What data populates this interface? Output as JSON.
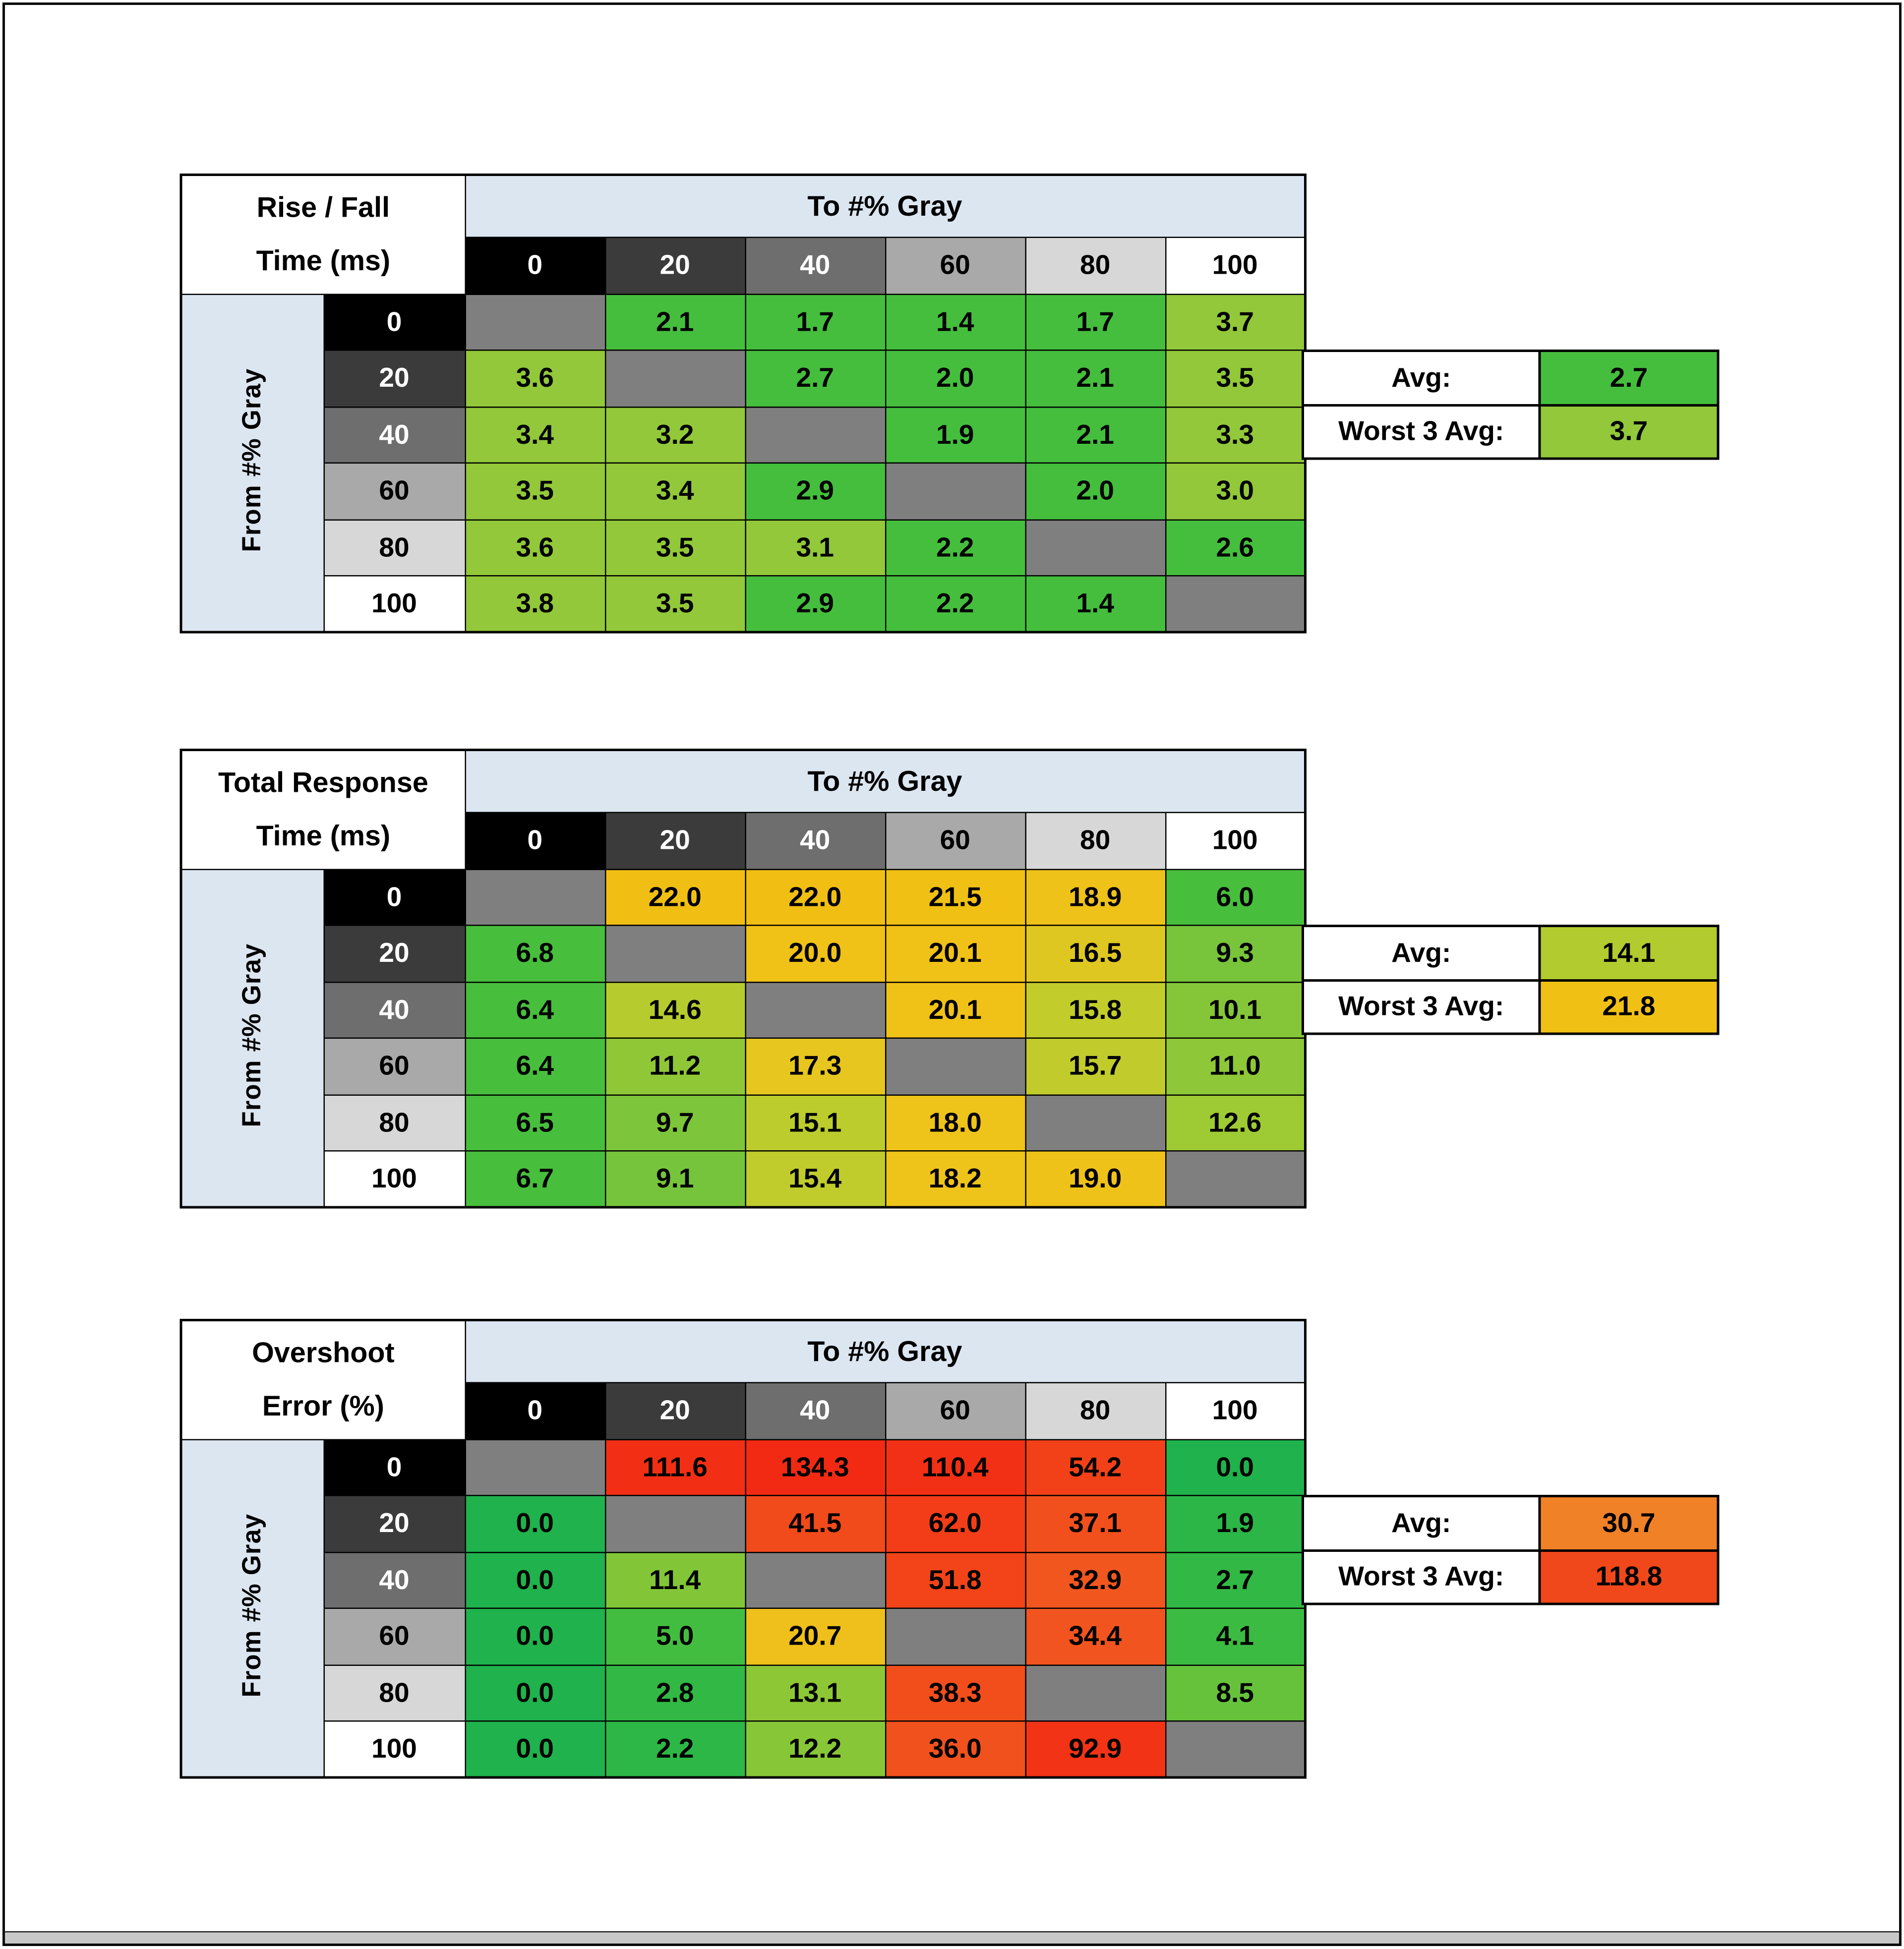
{
  "page": {
    "background": "#FFFFFF",
    "frame_color": "#0A0A0A",
    "scrollbar_color": "#C8C8C8"
  },
  "shared": {
    "to_label": "To #% Gray",
    "from_label": "From #% Gray",
    "avg_label": "Avg:",
    "worst_label": "Worst 3 Avg:",
    "levels": [
      "0",
      "20",
      "40",
      "60",
      "80",
      "100"
    ],
    "level_styles": [
      {
        "bg": "#000000",
        "fg": "#FFFFFF"
      },
      {
        "bg": "#3B3B3B",
        "fg": "#FFFFFF"
      },
      {
        "bg": "#6E6E6E",
        "fg": "#FFFFFF"
      },
      {
        "bg": "#A9A9A9",
        "fg": "#000000"
      },
      {
        "bg": "#D7D7D7",
        "fg": "#000000"
      },
      {
        "bg": "#FFFFFF",
        "fg": "#000000"
      }
    ],
    "header_band_color": "#DCE6F1",
    "diagonal_color": "#7F7F7F"
  },
  "tables": [
    {
      "title_line1": "Rise / Fall",
      "title_line2": "Time (ms)",
      "avg_color": "#45BE3E",
      "worst_color": "#92C839",
      "colors": [
        [
          null,
          "#45BE3E",
          "#45BE3E",
          "#45BE3E",
          "#45BE3E",
          "#92C839"
        ],
        [
          "#92C839",
          null,
          "#45BE3E",
          "#45BE3E",
          "#45BE3E",
          "#92C839"
        ],
        [
          "#92C839",
          "#92C839",
          null,
          "#45BE3E",
          "#45BE3E",
          "#92C839"
        ],
        [
          "#92C839",
          "#92C839",
          "#45BE3E",
          null,
          "#45BE3E",
          "#92C839"
        ],
        [
          "#92C839",
          "#92C839",
          "#92C839",
          "#45BE3E",
          null,
          "#45BE3E"
        ],
        [
          "#92C839",
          "#92C839",
          "#45BE3E",
          "#45BE3E",
          "#45BE3E",
          null
        ]
      ]
    },
    {
      "title_line1": "Total Response",
      "title_line2": "Time (ms)",
      "avg_color": "#B2CB2F",
      "worst_color": "#F0C015",
      "colors": [
        [
          null,
          "#F1BF14",
          "#F1BF14",
          "#F0C015",
          "#EFC219",
          "#48BE3D"
        ],
        [
          "#48BE3D",
          null,
          "#F0C117",
          "#F0C117",
          "#DFC722",
          "#78C43B"
        ],
        [
          "#48BE3D",
          "#B6CB2E",
          null,
          "#F0C117",
          "#C2CC2B",
          "#85C639"
        ],
        [
          "#48BE3D",
          "#90C737",
          "#E6C61F",
          null,
          "#C1CC2C",
          "#8EC737"
        ],
        [
          "#48BE3D",
          "#7DC53A",
          "#BCCC2D",
          "#EEC31A",
          null,
          "#9ECA33"
        ],
        [
          "#48BE3D",
          "#76C43B",
          "#BFCC2C",
          "#EEC31A",
          "#EFC219",
          null
        ]
      ]
    },
    {
      "title_line1": "Overshoot",
      "title_line2": "Error (%)",
      "avg_color": "#F08127",
      "worst_color": "#F1481B",
      "colors": [
        [
          null,
          "#F22F15",
          "#F22A13",
          "#F23015",
          "#F24119",
          "#1FB24D"
        ],
        [
          "#1FB24D",
          null,
          "#F14A1B",
          "#F23D18",
          "#F1501D",
          "#2BB647"
        ],
        [
          "#1FB24D",
          "#82C638",
          null,
          "#F24319",
          "#F1561F",
          "#31B845"
        ],
        [
          "#1FB24D",
          "#43BD40",
          "#EFC01B",
          null,
          "#F1541E",
          "#3CBB42"
        ],
        [
          "#1FB24D",
          "#32B845",
          "#8EC736",
          "#F14E1C",
          null,
          "#66C23B"
        ],
        [
          "#1FB24D",
          "#2DB746",
          "#87C737",
          "#F1511D",
          "#F23316",
          null
        ]
      ]
    }
  ],
  "chart_data": [
    {
      "type": "heatmap",
      "title": "Rise / Fall Time (ms)",
      "x_label": "To #% Gray",
      "y_label": "From #% Gray",
      "x": [
        0,
        20,
        40,
        60,
        80,
        100
      ],
      "y": [
        0,
        20,
        40,
        60,
        80,
        100
      ],
      "values": [
        [
          null,
          2.1,
          1.7,
          1.4,
          1.7,
          3.7
        ],
        [
          3.6,
          null,
          2.7,
          2.0,
          2.1,
          3.5
        ],
        [
          3.4,
          3.2,
          null,
          1.9,
          2.1,
          3.3
        ],
        [
          3.5,
          3.4,
          2.9,
          null,
          2.0,
          3.0
        ],
        [
          3.6,
          3.5,
          3.1,
          2.2,
          null,
          2.6
        ],
        [
          3.8,
          3.5,
          2.9,
          2.2,
          1.4,
          null
        ]
      ],
      "avg": 2.7,
      "worst3_avg": 3.7
    },
    {
      "type": "heatmap",
      "title": "Total Response Time (ms)",
      "x_label": "To #% Gray",
      "y_label": "From #% Gray",
      "x": [
        0,
        20,
        40,
        60,
        80,
        100
      ],
      "y": [
        0,
        20,
        40,
        60,
        80,
        100
      ],
      "values": [
        [
          null,
          22.0,
          22.0,
          21.5,
          18.9,
          6.0
        ],
        [
          6.8,
          null,
          20.0,
          20.1,
          16.5,
          9.3
        ],
        [
          6.4,
          14.6,
          null,
          20.1,
          15.8,
          10.1
        ],
        [
          6.4,
          11.2,
          17.3,
          null,
          15.7,
          11.0
        ],
        [
          6.5,
          9.7,
          15.1,
          18.0,
          null,
          12.6
        ],
        [
          6.7,
          9.1,
          15.4,
          18.2,
          19.0,
          null
        ]
      ],
      "avg": 14.1,
      "worst3_avg": 21.8
    },
    {
      "type": "heatmap",
      "title": "Overshoot Error (%)",
      "x_label": "To #% Gray",
      "y_label": "From #% Gray",
      "x": [
        0,
        20,
        40,
        60,
        80,
        100
      ],
      "y": [
        0,
        20,
        40,
        60,
        80,
        100
      ],
      "values": [
        [
          null,
          111.6,
          134.3,
          110.4,
          54.2,
          0.0
        ],
        [
          0.0,
          null,
          41.5,
          62.0,
          37.1,
          1.9
        ],
        [
          0.0,
          11.4,
          null,
          51.8,
          32.9,
          2.7
        ],
        [
          0.0,
          5.0,
          20.7,
          null,
          34.4,
          4.1
        ],
        [
          0.0,
          2.8,
          13.1,
          38.3,
          null,
          8.5
        ],
        [
          0.0,
          2.2,
          12.2,
          36.0,
          92.9,
          null
        ]
      ],
      "avg": 30.7,
      "worst3_avg": 118.8
    }
  ]
}
